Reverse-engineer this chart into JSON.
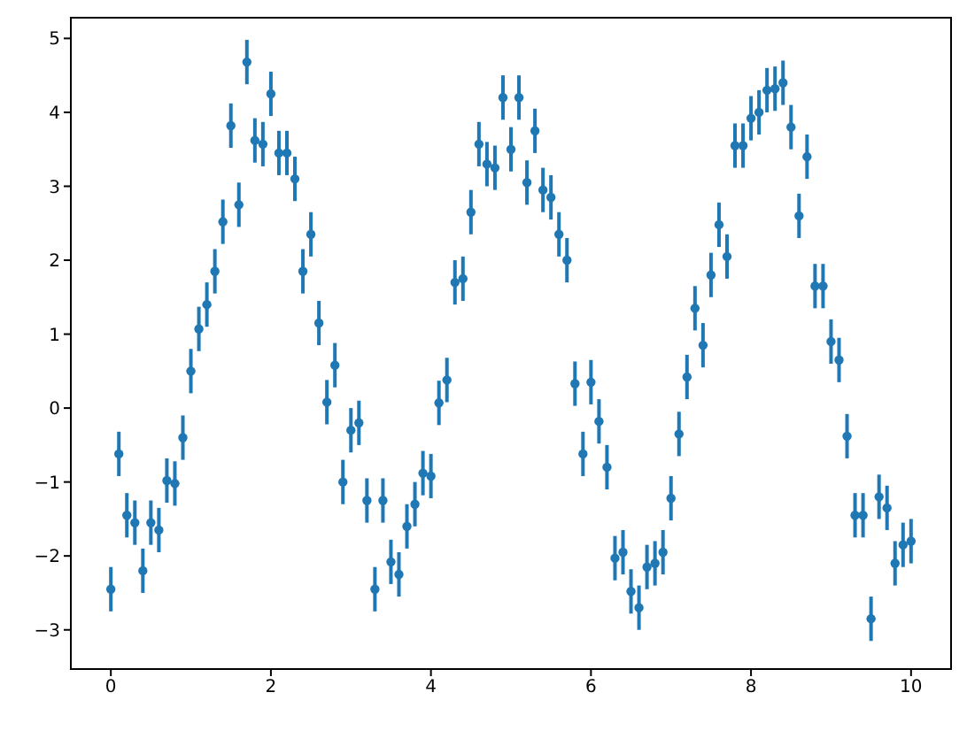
{
  "chart_data": {
    "type": "scatter",
    "color": "#1f77b4",
    "marker": "circle",
    "x": [
      0,
      0.1,
      0.2,
      0.3,
      0.4,
      0.5,
      0.6,
      0.7,
      0.8,
      0.9,
      1,
      1.1,
      1.2,
      1.3,
      1.4,
      1.5,
      1.6,
      1.7,
      1.8,
      1.9,
      2,
      2.1,
      2.2,
      2.3,
      2.4,
      2.5,
      2.6,
      2.7,
      2.8,
      2.9,
      3,
      3.1,
      3.2,
      3.3,
      3.4,
      3.5,
      3.6,
      3.7,
      3.8,
      3.9,
      4,
      4.1,
      4.2,
      4.3,
      4.4,
      4.5,
      4.6,
      4.7,
      4.8,
      4.9,
      5,
      5.1,
      5.2,
      5.3,
      5.4,
      5.5,
      5.6,
      5.7,
      5.8,
      5.9,
      6,
      6.1,
      6.2,
      6.3,
      6.4,
      6.5,
      6.6,
      6.7,
      6.8,
      6.9,
      7,
      7.1,
      7.2,
      7.3,
      7.4,
      7.5,
      7.6,
      7.7,
      7.8,
      7.9,
      8,
      8.1,
      8.2,
      8.3,
      8.4,
      8.5,
      8.6,
      8.7,
      8.8,
      8.9,
      9,
      9.1,
      9.2,
      9.3,
      9.4,
      9.5,
      9.6,
      9.7,
      9.8,
      9.9,
      10
    ],
    "values": [
      -2.45,
      -0.62,
      -1.45,
      -1.55,
      -2.2,
      -1.55,
      -1.65,
      -0.98,
      -1.02,
      -0.4,
      0.5,
      1.07,
      1.4,
      1.85,
      2.52,
      3.82,
      2.75,
      4.68,
      3.62,
      3.57,
      4.25,
      3.45,
      3.45,
      3.1,
      1.85,
      2.35,
      1.15,
      0.08,
      0.58,
      -1.0,
      -0.3,
      -0.2,
      -1.25,
      -2.45,
      -1.25,
      -2.08,
      -2.25,
      -1.6,
      -1.3,
      -0.88,
      -0.92,
      0.07,
      0.38,
      1.7,
      1.75,
      2.65,
      3.57,
      3.3,
      3.25,
      4.2,
      3.5,
      4.2,
      3.05,
      3.75,
      2.95,
      2.85,
      2.35,
      2.0,
      0.33,
      -0.62,
      0.35,
      -0.18,
      -0.8,
      -2.03,
      -1.95,
      -2.48,
      -2.7,
      -2.15,
      -2.1,
      -1.95,
      -1.22,
      -0.35,
      0.42,
      1.35,
      0.85,
      1.8,
      2.48,
      2.05,
      3.55,
      3.55,
      3.92,
      4.0,
      4.3,
      4.32,
      4.4,
      3.8,
      2.6,
      3.4,
      1.65,
      1.65,
      0.9,
      0.65,
      -0.38,
      -1.45,
      -1.45,
      -2.85,
      -1.2,
      -1.35,
      -2.1,
      -1.85,
      -1.8
    ],
    "errors": [
      0.3,
      0.3,
      0.3,
      0.3,
      0.3,
      0.3,
      0.3,
      0.3,
      0.3,
      0.3,
      0.3,
      0.3,
      0.3,
      0.3,
      0.3,
      0.3,
      0.3,
      0.3,
      0.3,
      0.3,
      0.3,
      0.3,
      0.3,
      0.3,
      0.3,
      0.3,
      0.3,
      0.3,
      0.3,
      0.3,
      0.3,
      0.3,
      0.3,
      0.3,
      0.3,
      0.3,
      0.3,
      0.3,
      0.3,
      0.3,
      0.3,
      0.3,
      0.3,
      0.3,
      0.3,
      0.3,
      0.3,
      0.3,
      0.3,
      0.3,
      0.3,
      0.3,
      0.3,
      0.3,
      0.3,
      0.3,
      0.3,
      0.3,
      0.3,
      0.3,
      0.3,
      0.3,
      0.3,
      0.3,
      0.3,
      0.3,
      0.3,
      0.3,
      0.3,
      0.3,
      0.3,
      0.3,
      0.3,
      0.3,
      0.3,
      0.3,
      0.3,
      0.3,
      0.3,
      0.3,
      0.3,
      0.3,
      0.3,
      0.3,
      0.3,
      0.3,
      0.3,
      0.3,
      0.3,
      0.3,
      0.3,
      0.3,
      0.3,
      0.3,
      0.3,
      0.3,
      0.3,
      0.3,
      0.3,
      0.3,
      0.3
    ],
    "xlim": [
      -0.5,
      10.5
    ],
    "xticks": [
      0,
      2,
      4,
      6,
      8,
      10
    ],
    "ylim": [
      -3.53,
      5.28
    ],
    "yticks": [
      -3,
      -2,
      -1,
      0,
      1,
      2,
      3,
      4,
      5
    ],
    "grid": false,
    "legend": false
  }
}
